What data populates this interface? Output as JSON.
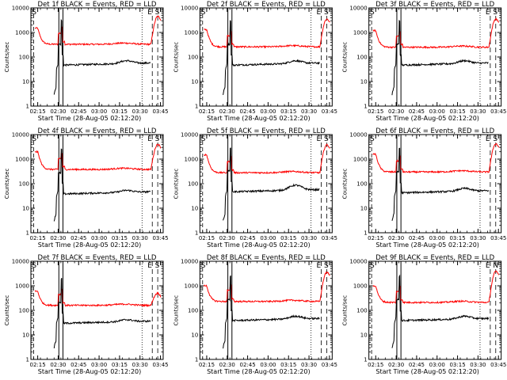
{
  "chart_data": {
    "type": "line",
    "xlabel": "Start Time (28-Aug-05 02:12:20)",
    "ylabel": "Counts/sec",
    "y_scale": "log",
    "ylim": [
      1,
      10000
    ],
    "y_ticks": [
      "1",
      "10",
      "100",
      "1000",
      "10000"
    ],
    "xlim_minutes": [
      -2,
      95
    ],
    "x_ticks": [
      {
        "t": 3,
        "label": "02:15"
      },
      {
        "t": 18,
        "label": "02:30"
      },
      {
        "t": 33,
        "label": "02:45"
      },
      {
        "t": 48,
        "label": "03:00"
      },
      {
        "t": 63,
        "label": "03:15"
      },
      {
        "t": 78,
        "label": "03:30"
      },
      {
        "t": 93,
        "label": "03:45"
      }
    ],
    "series": [
      {
        "name": "Events",
        "color": "#000000"
      },
      {
        "name": "LLD",
        "color": "#ff0000"
      }
    ],
    "panels": [
      {
        "title": "Det 1f BLACK = Events, RED = LLD",
        "events_base": 55,
        "events_bump": 1.3,
        "lld_base": 330,
        "lld_start": 1500,
        "lld_end": 4500,
        "flags": [
          "E",
          "S"
        ]
      },
      {
        "title": "Det 2f BLACK = Events, RED = LLD",
        "events_base": 55,
        "events_bump": 1.3,
        "lld_base": 260,
        "lld_start": 1300,
        "lld_end": 3500,
        "flags": [
          "E",
          "S"
        ]
      },
      {
        "title": "Det 3f BLACK = Events, RED = LLD",
        "events_base": 55,
        "events_bump": 1.3,
        "lld_base": 250,
        "lld_start": 1200,
        "lld_end": 3500,
        "flags": [
          "E",
          "S"
        ]
      },
      {
        "title": "Det 4f BLACK = Events, RED = LLD",
        "events_base": 45,
        "events_bump": 1.2,
        "lld_base": 380,
        "lld_start": 2000,
        "lld_end": 4000,
        "flags": [
          "E",
          "S"
        ]
      },
      {
        "title": "Det 5f BLACK = Events, RED = LLD",
        "events_base": 55,
        "events_bump": 1.6,
        "lld_base": 280,
        "lld_start": 1500,
        "lld_end": 3800,
        "flags": [
          "E",
          "S"
        ]
      },
      {
        "title": "Det 6f BLACK = Events, RED = LLD",
        "events_base": 50,
        "events_bump": 1.3,
        "lld_base": 300,
        "lld_start": 1600,
        "lld_end": 4200,
        "flags": [
          "E",
          "S"
        ]
      },
      {
        "title": "Det 7f BLACK = Events, RED = LLD",
        "events_base": 35,
        "events_bump": 1.2,
        "lld_base": 160,
        "lld_start": 600,
        "lld_end": 500,
        "flags": [
          "E",
          "S"
        ]
      },
      {
        "title": "Det 8f BLACK = Events, RED = LLD",
        "events_base": 45,
        "events_bump": 1.3,
        "lld_base": 230,
        "lld_start": 1000,
        "lld_end": 3500,
        "flags": [
          "E",
          "S"
        ]
      },
      {
        "title": "Det 9f BLACK = Events, RED = LLD",
        "events_base": 45,
        "events_bump": 1.3,
        "lld_base": 210,
        "lld_start": 1000,
        "lld_end": 3800,
        "flags": [
          "E",
          "N"
        ]
      }
    ]
  }
}
